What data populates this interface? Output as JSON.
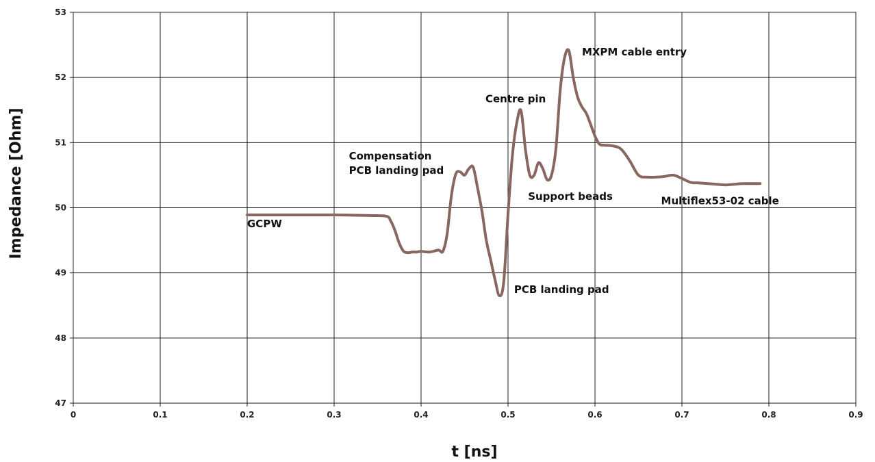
{
  "chart_data": {
    "type": "line",
    "title": "",
    "xlabel": "t [ns]",
    "ylabel": "Impedance [Ohm]",
    "xlim": [
      0,
      0.9
    ],
    "ylim": [
      47,
      53
    ],
    "xticks": [
      "0",
      "0.1",
      "0.2",
      "0.3",
      "0.4",
      "0.5",
      "0.6",
      "0.7",
      "0.8",
      "0.9"
    ],
    "yticks": [
      "47",
      "48",
      "49",
      "50",
      "51",
      "52",
      "53"
    ],
    "grid": true,
    "legend": "none",
    "series_color": "#8a6660",
    "series": [
      {
        "x": [
          0.2,
          0.25,
          0.3,
          0.34,
          0.36,
          0.365,
          0.37,
          0.375,
          0.38,
          0.385,
          0.39,
          0.395,
          0.4,
          0.41,
          0.42,
          0.425,
          0.43,
          0.435,
          0.44,
          0.445,
          0.45,
          0.455,
          0.46,
          0.465,
          0.47,
          0.475,
          0.48,
          0.485,
          0.49,
          0.495,
          0.5,
          0.505,
          0.51,
          0.515,
          0.52,
          0.525,
          0.53,
          0.535,
          0.54,
          0.545,
          0.55,
          0.555,
          0.56,
          0.565,
          0.57,
          0.575,
          0.58,
          0.585,
          0.59,
          0.595,
          0.6,
          0.605,
          0.61,
          0.62,
          0.63,
          0.64,
          0.65,
          0.66,
          0.67,
          0.68,
          0.69,
          0.7,
          0.71,
          0.72,
          0.73,
          0.74,
          0.75,
          0.76,
          0.77,
          0.78,
          0.79
        ],
        "y": [
          49.89,
          49.89,
          49.89,
          49.88,
          49.87,
          49.8,
          49.65,
          49.45,
          49.33,
          49.31,
          49.32,
          49.32,
          49.33,
          49.32,
          49.35,
          49.33,
          49.6,
          50.2,
          50.52,
          50.55,
          50.5,
          50.6,
          50.62,
          50.3,
          49.95,
          49.5,
          49.2,
          48.9,
          48.65,
          48.85,
          49.9,
          50.8,
          51.3,
          51.49,
          50.9,
          50.5,
          50.5,
          50.69,
          50.6,
          50.43,
          50.5,
          50.9,
          51.8,
          52.3,
          52.41,
          52.0,
          51.7,
          51.55,
          51.45,
          51.28,
          51.1,
          50.98,
          50.96,
          50.95,
          50.9,
          50.72,
          50.5,
          50.47,
          50.47,
          50.48,
          50.5,
          50.45,
          50.39,
          50.38,
          50.37,
          50.36,
          50.35,
          50.36,
          50.37,
          50.37,
          50.37
        ]
      }
    ],
    "annotations": [
      {
        "lines": [
          "GCPW"
        ],
        "x": 0.2,
        "y": 49.7
      },
      {
        "lines": [
          "Compensation",
          "PCB landing pad"
        ],
        "x": 0.317,
        "y": 50.74
      },
      {
        "lines": [
          "PCB landing pad"
        ],
        "x": 0.507,
        "y": 48.69
      },
      {
        "lines": [
          "Centre pin"
        ],
        "x": 0.474,
        "y": 51.62
      },
      {
        "lines": [
          "Support beads"
        ],
        "x": 0.523,
        "y": 50.12
      },
      {
        "lines": [
          "MXPM  cable entry"
        ],
        "x": 0.585,
        "y": 52.34
      },
      {
        "lines": [
          "Multiflex53-02 cable"
        ],
        "x": 0.676,
        "y": 50.05
      }
    ]
  }
}
